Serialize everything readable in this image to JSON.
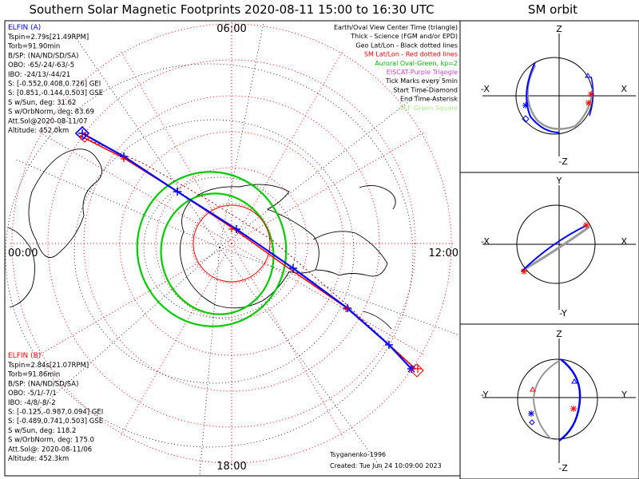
{
  "header": {
    "title": "Southern Solar Magnetic Footprints 2020-08-11 15:00 to 16:30 UTC",
    "right_title": "SM orbit"
  },
  "map": {
    "time_labels": {
      "top": "06:00",
      "left": "00:00",
      "right": "12:00",
      "bottom": "18:00"
    },
    "legend": [
      {
        "text": "Earth/Oval View Center Time (triangle)",
        "color": "#000000"
      },
      {
        "text": "Thick - Science (FGM and/or EPD)",
        "color": "#000000"
      },
      {
        "text": "Geo Lat/Lon - Black dotted lines",
        "color": "#000000"
      },
      {
        "text": "SM Lat/Lon - Red dotted lines",
        "color": "#ff0000"
      },
      {
        "text": "Auroral Oval-Green, kp=2",
        "color": "#00bb00"
      },
      {
        "text": "EISCAT-Purple Triangle",
        "color": "#cc44cc"
      },
      {
        "text": "Tick Marks every 5min",
        "color": "#000000"
      },
      {
        "text": "Start Time-Diamond",
        "color": "#000000"
      },
      {
        "text": "End Time-Asterisk",
        "color": "#000000"
      },
      {
        "text": "VLF-Green Square",
        "color": "#aaee88"
      }
    ],
    "elfin_a": {
      "label": "ELFIN (A)",
      "lines": [
        "Tspin=2.79s[21.49RPM]",
        "Torb=91.90min",
        "B/SP: (NA/ND/SD/SA)",
        "OBO: -65/-24/-63/-5",
        "IBO: -24/13/-44/21",
        "S: [-0.552,0.408,0.726] GEI",
        "S: [0.851,-0.144,0.503] GSE",
        "S w/Sun, deg: 31.62",
        "S w/OrbNorm, deg: 83.69",
        "Att.Sol@2020-08-11/07",
        "Altitude: 452.0km"
      ]
    },
    "elfin_b": {
      "label": "ELFIN (B)",
      "lines": [
        "Tspin=2.84s[21.07RPM]",
        "Torb=91.86min",
        "B/SP: (NA/ND/SD/SA)",
        "OBO: -5/1/-7/1",
        "IBO: -4/8/-8/-2",
        "S: [-0.125,-0.987,0.094] GEI",
        "S: [-0.489,0.741,0.503] GSE",
        "S w/Sun, deg: 118.2",
        "S w/OrbNorm, deg: 175.0",
        "Att.Sol@: 2020-08-11/06",
        "Altitude: 452.3km"
      ]
    },
    "footer_model": "Tsyganenko-1996",
    "footer_created": "Created: Tue Jun 24 10:09:00 2023",
    "colors": {
      "elfin_a": "#0000ff",
      "elfin_b": "#ff0000",
      "oval": "#00cc00",
      "grid": "#ff0000",
      "geo": "#000000"
    }
  },
  "orbit_panels": [
    {
      "top": "Z",
      "bottom": "-Z",
      "left": "-X",
      "right": "X"
    },
    {
      "top": "Y",
      "bottom": "-Y",
      "left": "-X",
      "right": "X"
    },
    {
      "top": "Z",
      "bottom": "-Z",
      "left": "-Y",
      "right": "Y"
    }
  ]
}
